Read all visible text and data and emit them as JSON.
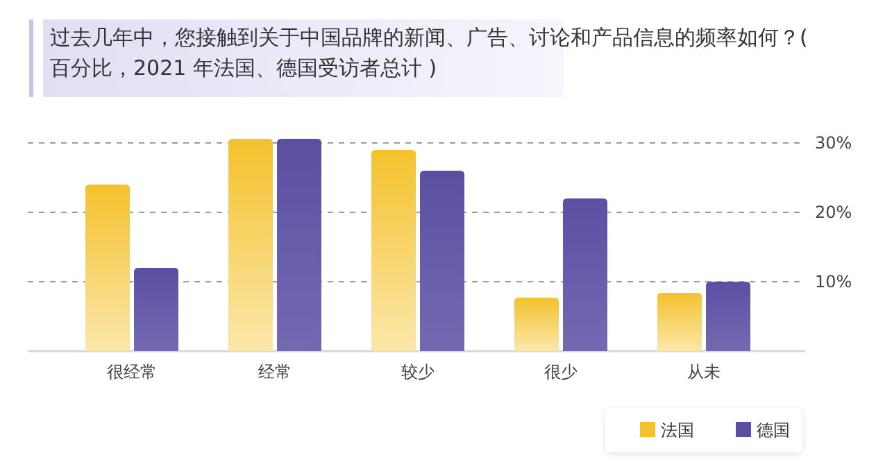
{
  "chart_data": {
    "type": "bar",
    "title": "过去几年中，您接触到关于中国品牌的新闻、广告、讨论和产品信息的频率如何？( 百分比，2021 年法国、德国受访者总计 )",
    "categories": [
      "很经常",
      "经常",
      "较少",
      "很少",
      "从未"
    ],
    "series": [
      {
        "name": "法国",
        "color": "#f4c22c",
        "values": [
          24,
          30.6,
          29,
          7.7,
          8.4
        ]
      },
      {
        "name": "德国",
        "color": "#5b4fa3",
        "values": [
          12,
          30.6,
          26,
          22,
          10
        ]
      }
    ],
    "ylim": [
      0,
      30.6
    ],
    "yticks": [
      {
        "value": 10,
        "label": "10%"
      },
      {
        "value": 20,
        "label": "20%"
      },
      {
        "value": 30,
        "label": "30%"
      }
    ],
    "grid": "y",
    "legend": "bottom right"
  }
}
